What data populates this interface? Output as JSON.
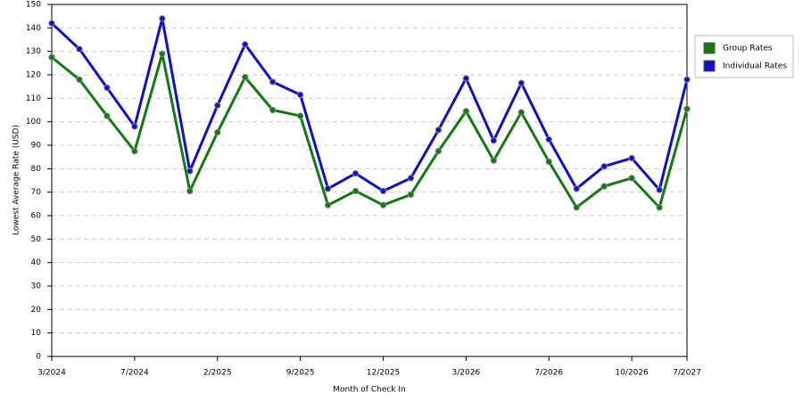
{
  "chart_data": {
    "type": "line",
    "x_label": "Month of Check In",
    "y_label": "Lowest Average Rate (USD)",
    "categories": [
      "3/2024",
      null,
      null,
      "7/2024",
      null,
      null,
      "2/2025",
      null,
      null,
      "9/2025",
      null,
      null,
      "12/2025",
      null,
      null,
      "3/2026",
      null,
      null,
      "7/2026",
      null,
      null,
      "10/2026",
      null,
      "7/2027"
    ],
    "series": [
      {
        "name": "Group Rates",
        "color": "#117a11",
        "values": [
          127.5,
          118,
          102.5,
          87.5,
          129,
          70.5,
          95.5,
          119,
          105,
          102.5,
          64.5,
          70.5,
          64.5,
          69,
          87.5,
          104.5,
          83.5,
          104,
          83,
          63.5,
          72.5,
          76,
          63.5,
          105.5
        ]
      },
      {
        "name": "Individual Rates",
        "color": "#1010cc",
        "values": [
          142,
          131,
          114.5,
          98,
          144,
          79,
          107,
          133,
          117,
          111.5,
          71.5,
          78,
          70.5,
          76,
          96.5,
          118.5,
          92,
          116.5,
          92.5,
          71.5,
          81,
          84.5,
          71,
          118
        ]
      }
    ],
    "ylim": [
      0,
      150
    ],
    "yticks": [
      0,
      10,
      20,
      30,
      40,
      50,
      60,
      70,
      80,
      90,
      100,
      110,
      120,
      130,
      140,
      150
    ],
    "grid": true,
    "legend": "right"
  }
}
